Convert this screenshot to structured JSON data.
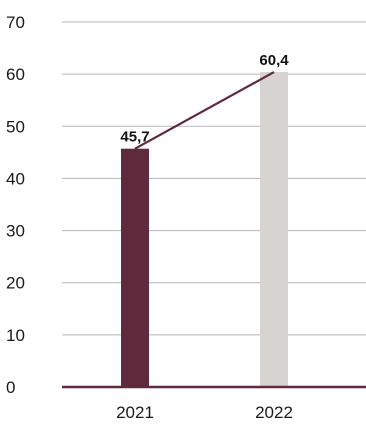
{
  "chart_data": {
    "type": "bar",
    "categories": [
      "2021",
      "2022"
    ],
    "values": [
      45.7,
      60.4
    ],
    "value_labels": [
      "45,7",
      "60,4"
    ],
    "bar_colors": [
      "#5e2a3c",
      "#d6d4d0"
    ],
    "trend_line": {
      "from": "2021",
      "to": "2022",
      "color": "#5e2a3c"
    },
    "ylim": [
      0,
      70
    ],
    "yticks": [
      0,
      10,
      20,
      30,
      40,
      50,
      60,
      70
    ],
    "grid": true,
    "grid_color": "#b5b5b5",
    "baseline_color": "#5e2a3c",
    "title": "",
    "xlabel": "",
    "ylabel": ""
  }
}
